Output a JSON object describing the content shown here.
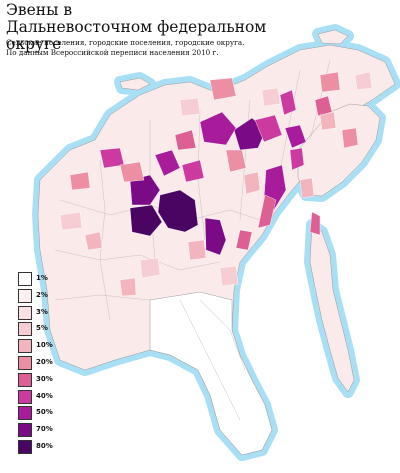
{
  "title": {
    "line1": "Эвены в",
    "line2": "Дальневосточном федеральном округе"
  },
  "subtitle": {
    "line1": "Сельские поселения, городские поселения, городские округа.",
    "line2": "По данным Всероссийской переписи населения 2010 г."
  },
  "colors": {
    "water": "#a8dff5",
    "land_base": "#fbeaea",
    "border": "#9a9a9a"
  },
  "legend": [
    {
      "label": "1%",
      "color": "#ffffff"
    },
    {
      "label": "2%",
      "color": "#fcf0f0"
    },
    {
      "label": "3%",
      "color": "#f9e0e2"
    },
    {
      "label": "5%",
      "color": "#f6cdd2"
    },
    {
      "label": "10%",
      "color": "#f2b4bd"
    },
    {
      "label": "20%",
      "color": "#ec8fa3"
    },
    {
      "label": "30%",
      "color": "#de5f93"
    },
    {
      "label": "40%",
      "color": "#cc3aa0"
    },
    {
      "label": "50%",
      "color": "#a81c9b"
    },
    {
      "label": "70%",
      "color": "#7b0a87"
    },
    {
      "label": "80%",
      "color": "#4a0462"
    }
  ]
}
